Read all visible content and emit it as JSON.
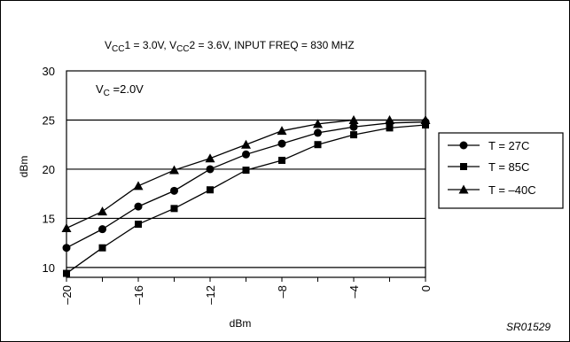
{
  "chart_data": {
    "type": "line",
    "title_parts": {
      "p1": "V",
      "p1_sub": "CC",
      "p2": "1 = 3.0V, V",
      "p2_sub": "CC",
      "p3": "2 = 3.6V, INPUT FREQ = 830 MHZ"
    },
    "annotation": {
      "main": "V",
      "sub": "C",
      "rest": " =2.0V"
    },
    "xlabel": "dBm",
    "ylabel": "dBm",
    "xlim": [
      -20,
      0
    ],
    "ylim": [
      9,
      30
    ],
    "xticks": [
      -20,
      -16,
      -12,
      -8,
      -4,
      0
    ],
    "xtick_labels": [
      "–20",
      "–16",
      "–12",
      "–8",
      "–4",
      "0"
    ],
    "yticks": [
      10,
      15,
      20,
      25,
      30
    ],
    "ytick_labels": [
      "10",
      "15",
      "20",
      "25",
      "30"
    ],
    "grid": "horizontal",
    "legend_position": "right",
    "x": [
      -20,
      -18,
      -16,
      -14,
      -12,
      -10,
      -8,
      -6,
      -4,
      -2,
      0
    ],
    "series": [
      {
        "name": "T = 27C",
        "marker": "circle",
        "values": [
          12.0,
          13.9,
          16.2,
          17.8,
          20.0,
          21.5,
          22.6,
          23.7,
          24.3,
          24.7,
          24.8
        ]
      },
      {
        "name": "T = 85C",
        "marker": "square",
        "values": [
          9.4,
          12.0,
          14.4,
          16.0,
          17.9,
          19.9,
          20.9,
          22.5,
          23.5,
          24.2,
          24.5
        ]
      },
      {
        "name": "T = –40C",
        "marker": "triangle",
        "values": [
          14.0,
          15.7,
          18.3,
          19.9,
          21.1,
          22.5,
          23.9,
          24.6,
          25.0,
          25.0,
          25.0
        ]
      }
    ]
  },
  "figure_id": "SR01529"
}
